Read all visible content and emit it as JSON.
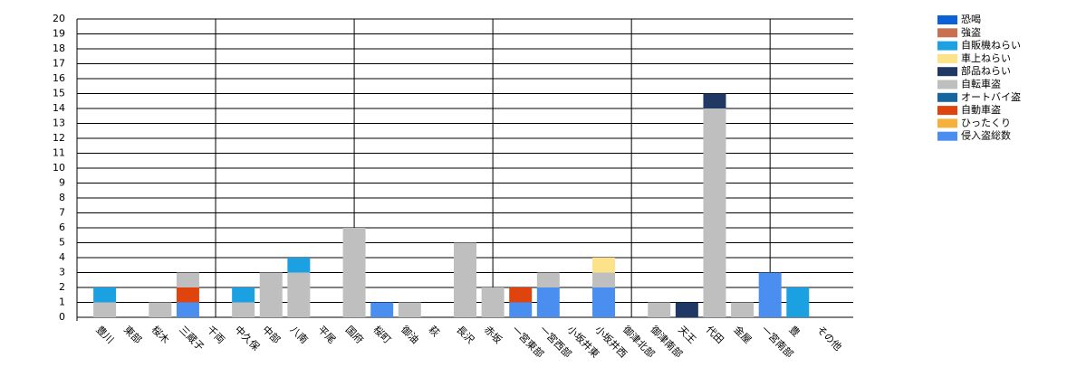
{
  "chart_data": {
    "type": "stacked_bar",
    "categories": [
      "豊川",
      "東部",
      "桜木",
      "三蔵子",
      "千両",
      "中久保",
      "中部",
      "八南",
      "平尾",
      "国府",
      "桜町",
      "御油",
      "萩",
      "長沢",
      "赤坂",
      "一宮東部",
      "一宮西部",
      "小坂井東",
      "小坂井西",
      "御津北部",
      "御津南部",
      "天王",
      "代田",
      "金屋",
      "一宮南部",
      "豊",
      "その他"
    ],
    "series": [
      {
        "name": "恐喝",
        "color": "#0b62d6",
        "values": [
          0,
          0,
          0,
          0,
          0,
          0,
          0,
          0,
          0,
          0,
          0,
          0,
          0,
          0,
          0,
          0,
          0,
          0,
          0,
          0,
          0,
          0,
          0,
          0,
          0,
          0,
          0
        ]
      },
      {
        "name": "強盗",
        "color": "#c8704f",
        "values": [
          0,
          0,
          0,
          0,
          0,
          0,
          0,
          0,
          0,
          0,
          0,
          0,
          0,
          0,
          0,
          0,
          0,
          0,
          0,
          0,
          0,
          0,
          0,
          0,
          0,
          0,
          0
        ]
      },
      {
        "name": "自販機ねらい",
        "color": "#1ba1e2",
        "values": [
          1,
          0,
          0,
          0,
          0,
          1,
          0,
          1,
          0,
          0,
          0,
          0,
          0,
          0,
          0,
          0,
          0,
          0,
          0,
          0,
          0,
          0,
          0,
          0,
          0,
          2,
          0
        ]
      },
      {
        "name": "車上ねらい",
        "color": "#fce38a",
        "values": [
          0,
          0,
          0,
          0,
          0,
          0,
          0,
          0,
          0,
          0,
          0,
          0,
          0,
          0,
          0,
          0,
          0,
          0,
          1,
          0,
          0,
          0,
          0,
          0,
          0,
          0,
          0
        ]
      },
      {
        "name": "部品ねらい",
        "color": "#1f3864",
        "values": [
          0,
          0,
          0,
          0,
          0,
          0,
          0,
          0,
          0,
          0,
          0,
          0,
          0,
          0,
          0,
          0,
          0,
          0,
          0,
          0,
          0,
          1,
          1,
          0,
          0,
          0,
          0
        ]
      },
      {
        "name": "自転車盗",
        "color": "#bfbfbf",
        "values": [
          1,
          0,
          1,
          1,
          0,
          1,
          3,
          3,
          0,
          6,
          0,
          1,
          0,
          5,
          2,
          0,
          1,
          0,
          1,
          0,
          1,
          0,
          14,
          1,
          0,
          0,
          0
        ]
      },
      {
        "name": "オートバイ盗",
        "color": "#1565a0",
        "values": [
          0,
          0,
          0,
          0,
          0,
          0,
          0,
          0,
          0,
          0,
          0,
          0,
          0,
          0,
          0,
          0,
          0,
          0,
          0,
          0,
          0,
          0,
          0,
          0,
          0,
          0,
          0
        ]
      },
      {
        "name": "自動車盗",
        "color": "#e0440e",
        "values": [
          0,
          0,
          0,
          1,
          0,
          0,
          0,
          0,
          0,
          0,
          0,
          0,
          0,
          0,
          0,
          1,
          0,
          0,
          0,
          0,
          0,
          0,
          0,
          0,
          0,
          0,
          0
        ]
      },
      {
        "name": "ひったくり",
        "color": "#f6b03c",
        "values": [
          0,
          0,
          0,
          0,
          0,
          0,
          0,
          0,
          0,
          0,
          0,
          0,
          0,
          0,
          0,
          0,
          0,
          0,
          0,
          0,
          0,
          0,
          0,
          0,
          0,
          0,
          0
        ]
      },
      {
        "name": "侵入盗総数",
        "color": "#4a8ef0",
        "values": [
          0,
          0,
          0,
          1,
          0,
          0,
          0,
          0,
          0,
          0,
          1,
          0,
          0,
          0,
          0,
          1,
          2,
          0,
          2,
          0,
          0,
          0,
          0,
          0,
          3,
          0,
          0
        ]
      }
    ],
    "ylim": [
      0,
      20
    ],
    "yticks": [
      0,
      1,
      2,
      3,
      4,
      5,
      6,
      7,
      8,
      9,
      10,
      11,
      12,
      13,
      14,
      15,
      16,
      17,
      18,
      19,
      20
    ],
    "grid": true
  }
}
